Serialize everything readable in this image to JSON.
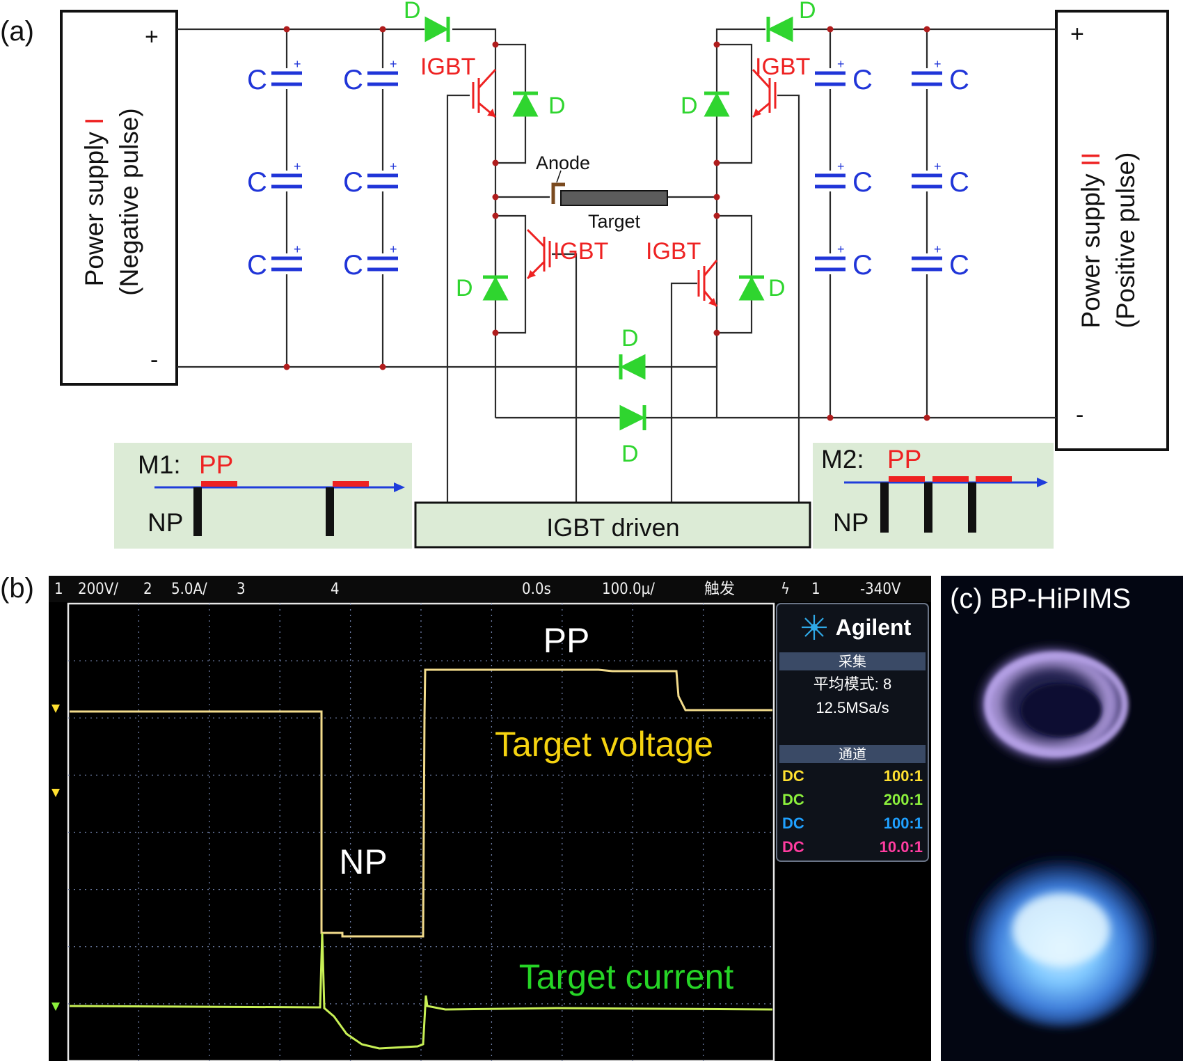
{
  "panel_a": {
    "label": "(a)",
    "supply_left": {
      "line1": "Power supply ",
      "numeral": "I",
      "line2": "(Negative pulse)",
      "plus": "+",
      "minus": "-"
    },
    "supply_right": {
      "line1": "Power supply ",
      "numeral": "II",
      "line2": "(Positive pulse)",
      "plus": "+",
      "minus": "-"
    },
    "capacitor_label": "C",
    "capacitor_plus": "+",
    "igbt_label": "IGBT",
    "diode_label": "D",
    "anode_label": "Anode",
    "target_label": "Target",
    "driver_label": "IGBT driven",
    "m1": {
      "title": "M1:",
      "pp": "PP",
      "np": "NP"
    },
    "m2": {
      "title": "M2:",
      "pp": "PP",
      "np": "NP"
    },
    "colors": {
      "capacitor": "#2035d8",
      "igbt": "#ee2222",
      "diode": "#2fd52f",
      "mode_box": "#dcebd6",
      "target": "#5c5c5c",
      "anode": "#7a4a1f"
    }
  },
  "panel_b": {
    "label": "(b)",
    "status_bar": {
      "ch1_num": "1",
      "ch1_scale": "200V/",
      "ch2_num": "2",
      "ch2_scale": "5.0A/",
      "ch3_num": "3",
      "ch4_num": "4",
      "time_offset": "0.0s",
      "time_scale": "100.0µ/",
      "trigger_text": "触发",
      "trigger_symbol": "ϟ",
      "trigger_ch": "1",
      "trigger_level": "-340V"
    },
    "side_panel": {
      "brand": "Agilent",
      "acq_title": "采集",
      "acq_mode": "平均模式: 8",
      "acq_rate": "12.5MSa/s",
      "chan_title": "通道",
      "channels": [
        {
          "coupling": "DC",
          "ratio": "100:1",
          "color": "#ffe030"
        },
        {
          "coupling": "DC",
          "ratio": "200:1",
          "color": "#8cf03c"
        },
        {
          "coupling": "DC",
          "ratio": "100:1",
          "color": "#1fa0ff"
        },
        {
          "coupling": "DC",
          "ratio": "10.0:1",
          "color": "#ff3ca0"
        }
      ]
    },
    "annotations": {
      "pp": "PP",
      "np": "NP",
      "voltage": "Target voltage",
      "current": "Target current"
    },
    "colors": {
      "voltage_trace": "#f3dc8c",
      "current_trace": "#c8f055",
      "voltage_text": "#f5d310",
      "current_text": "#26d526"
    }
  },
  "panel_c": {
    "label": "(c) BP-HiPIMS"
  }
}
